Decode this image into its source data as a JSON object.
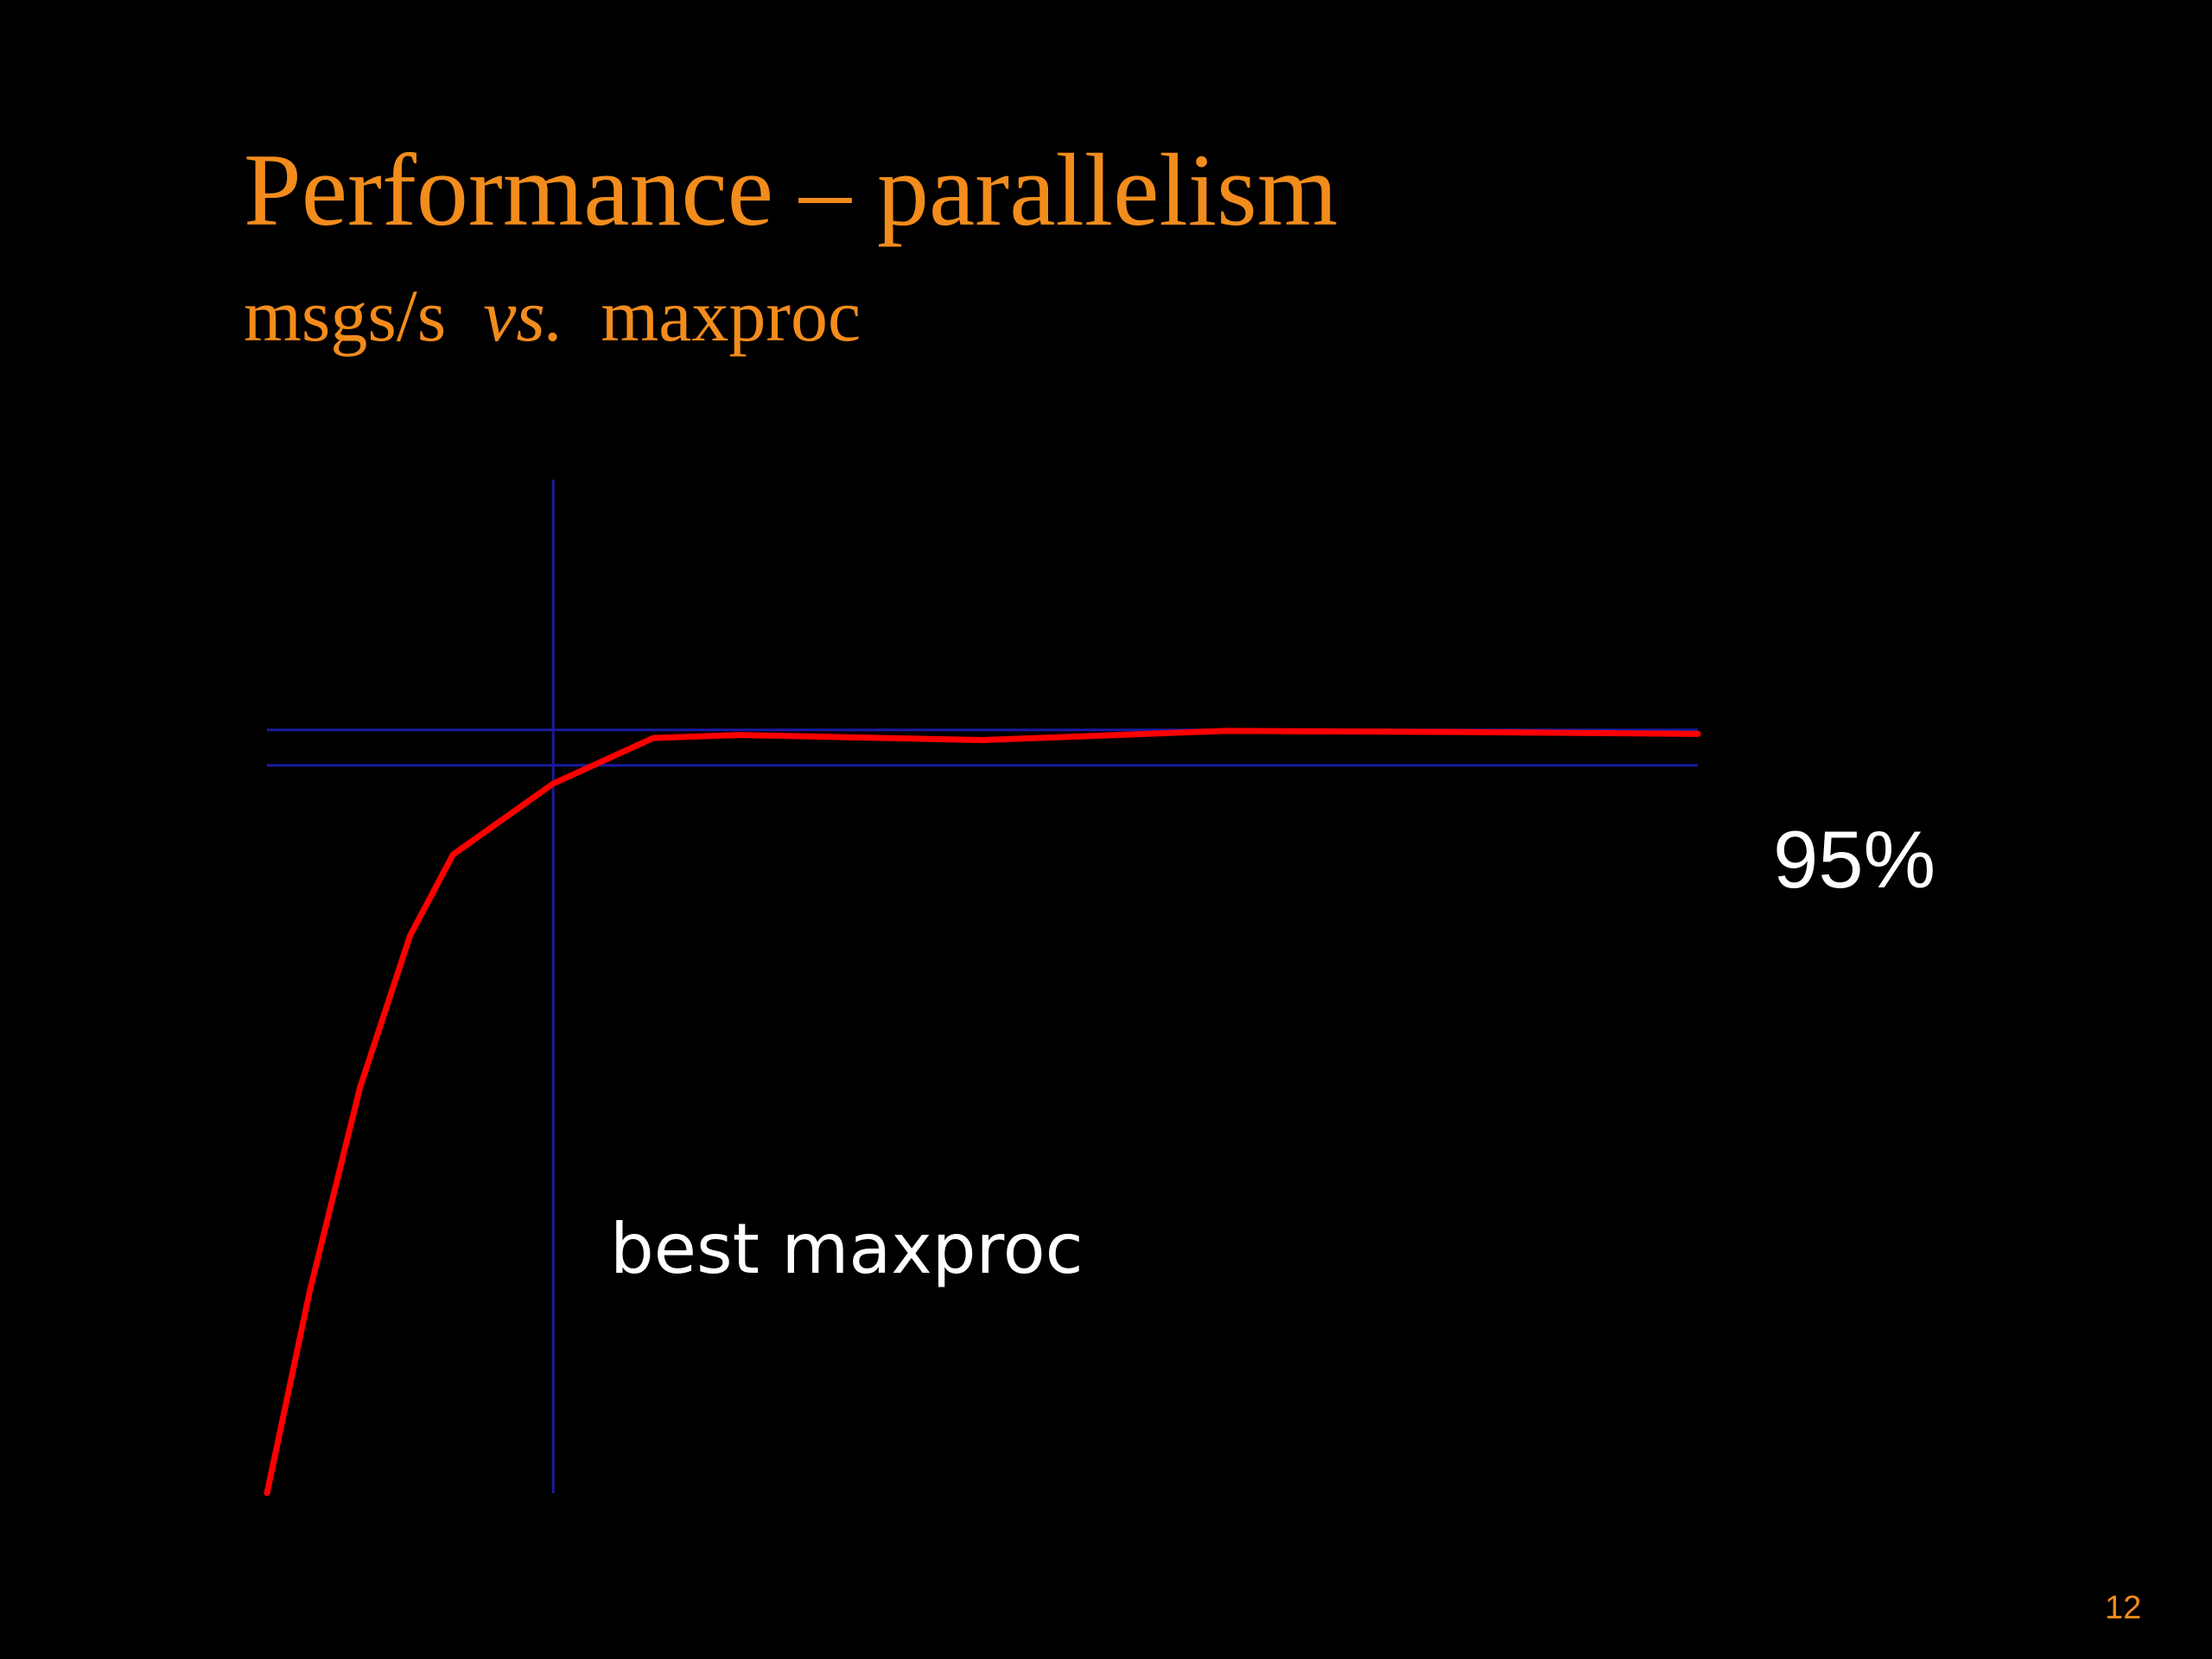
{
  "slide": {
    "title": "Performance – parallelism",
    "subtitle_before": "msgs/s  ",
    "subtitle_italic": "vs.",
    "subtitle_after": "  maxproc",
    "page_number": "12",
    "title_color": "#f28c1c",
    "page_number_color": "#f28c1c"
  },
  "chart_data": {
    "type": "line",
    "title": "",
    "xlabel": "",
    "ylabel": "",
    "xlim": [
      0,
      100
    ],
    "ylim": [
      0,
      100
    ],
    "grid": false,
    "legend": "none",
    "series": [
      {
        "color": "#ff0000",
        "x": [
          0,
          3,
          6.5,
          10,
          13,
          20,
          27,
          33,
          50,
          67,
          83,
          100
        ],
        "y": [
          0,
          20,
          40,
          55,
          63,
          70,
          74.5,
          74.8,
          74.3,
          75.2,
          75.1,
          74.9
        ]
      }
    ],
    "reference_lines": [
      {
        "orientation": "horizontal",
        "y": 75.3,
        "color": "#1a1aa0"
      },
      {
        "orientation": "horizontal",
        "y": 71.8,
        "color": "#1a1aa0"
      },
      {
        "orientation": "vertical",
        "x": 20,
        "color": "#1a1aa0"
      }
    ],
    "annotations": [
      {
        "text": "95%"
      },
      {
        "text": "best maxproc"
      }
    ]
  }
}
